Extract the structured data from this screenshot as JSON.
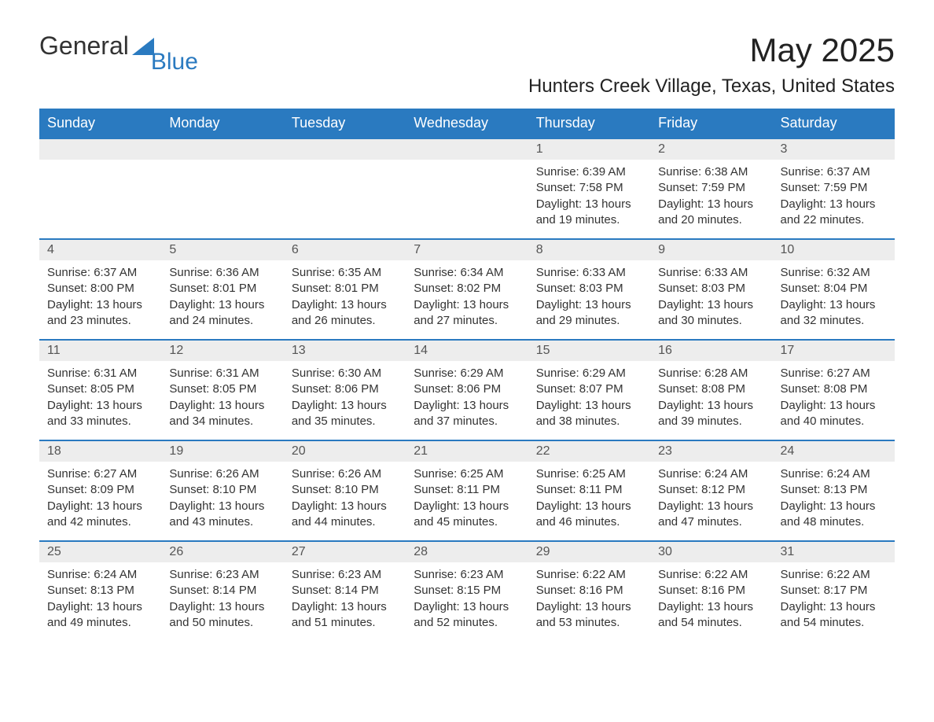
{
  "logo": {
    "text1": "General",
    "text2": "Blue"
  },
  "title": "May 2025",
  "subtitle": "Hunters Creek Village, Texas, United States",
  "colors": {
    "header_bg": "#2a7ac0",
    "header_text": "#ffffff",
    "daynum_bg": "#ededed",
    "border_top": "#2a7ac0",
    "body_text": "#333333",
    "page_bg": "#ffffff"
  },
  "days_of_week": [
    "Sunday",
    "Monday",
    "Tuesday",
    "Wednesday",
    "Thursday",
    "Friday",
    "Saturday"
  ],
  "weeks": [
    [
      {
        "n": "",
        "sunrise": "",
        "sunset": "",
        "daylight": ""
      },
      {
        "n": "",
        "sunrise": "",
        "sunset": "",
        "daylight": ""
      },
      {
        "n": "",
        "sunrise": "",
        "sunset": "",
        "daylight": ""
      },
      {
        "n": "",
        "sunrise": "",
        "sunset": "",
        "daylight": ""
      },
      {
        "n": "1",
        "sunrise": "Sunrise: 6:39 AM",
        "sunset": "Sunset: 7:58 PM",
        "daylight": "Daylight: 13 hours and 19 minutes."
      },
      {
        "n": "2",
        "sunrise": "Sunrise: 6:38 AM",
        "sunset": "Sunset: 7:59 PM",
        "daylight": "Daylight: 13 hours and 20 minutes."
      },
      {
        "n": "3",
        "sunrise": "Sunrise: 6:37 AM",
        "sunset": "Sunset: 7:59 PM",
        "daylight": "Daylight: 13 hours and 22 minutes."
      }
    ],
    [
      {
        "n": "4",
        "sunrise": "Sunrise: 6:37 AM",
        "sunset": "Sunset: 8:00 PM",
        "daylight": "Daylight: 13 hours and 23 minutes."
      },
      {
        "n": "5",
        "sunrise": "Sunrise: 6:36 AM",
        "sunset": "Sunset: 8:01 PM",
        "daylight": "Daylight: 13 hours and 24 minutes."
      },
      {
        "n": "6",
        "sunrise": "Sunrise: 6:35 AM",
        "sunset": "Sunset: 8:01 PM",
        "daylight": "Daylight: 13 hours and 26 minutes."
      },
      {
        "n": "7",
        "sunrise": "Sunrise: 6:34 AM",
        "sunset": "Sunset: 8:02 PM",
        "daylight": "Daylight: 13 hours and 27 minutes."
      },
      {
        "n": "8",
        "sunrise": "Sunrise: 6:33 AM",
        "sunset": "Sunset: 8:03 PM",
        "daylight": "Daylight: 13 hours and 29 minutes."
      },
      {
        "n": "9",
        "sunrise": "Sunrise: 6:33 AM",
        "sunset": "Sunset: 8:03 PM",
        "daylight": "Daylight: 13 hours and 30 minutes."
      },
      {
        "n": "10",
        "sunrise": "Sunrise: 6:32 AM",
        "sunset": "Sunset: 8:04 PM",
        "daylight": "Daylight: 13 hours and 32 minutes."
      }
    ],
    [
      {
        "n": "11",
        "sunrise": "Sunrise: 6:31 AM",
        "sunset": "Sunset: 8:05 PM",
        "daylight": "Daylight: 13 hours and 33 minutes."
      },
      {
        "n": "12",
        "sunrise": "Sunrise: 6:31 AM",
        "sunset": "Sunset: 8:05 PM",
        "daylight": "Daylight: 13 hours and 34 minutes."
      },
      {
        "n": "13",
        "sunrise": "Sunrise: 6:30 AM",
        "sunset": "Sunset: 8:06 PM",
        "daylight": "Daylight: 13 hours and 35 minutes."
      },
      {
        "n": "14",
        "sunrise": "Sunrise: 6:29 AM",
        "sunset": "Sunset: 8:06 PM",
        "daylight": "Daylight: 13 hours and 37 minutes."
      },
      {
        "n": "15",
        "sunrise": "Sunrise: 6:29 AM",
        "sunset": "Sunset: 8:07 PM",
        "daylight": "Daylight: 13 hours and 38 minutes."
      },
      {
        "n": "16",
        "sunrise": "Sunrise: 6:28 AM",
        "sunset": "Sunset: 8:08 PM",
        "daylight": "Daylight: 13 hours and 39 minutes."
      },
      {
        "n": "17",
        "sunrise": "Sunrise: 6:27 AM",
        "sunset": "Sunset: 8:08 PM",
        "daylight": "Daylight: 13 hours and 40 minutes."
      }
    ],
    [
      {
        "n": "18",
        "sunrise": "Sunrise: 6:27 AM",
        "sunset": "Sunset: 8:09 PM",
        "daylight": "Daylight: 13 hours and 42 minutes."
      },
      {
        "n": "19",
        "sunrise": "Sunrise: 6:26 AM",
        "sunset": "Sunset: 8:10 PM",
        "daylight": "Daylight: 13 hours and 43 minutes."
      },
      {
        "n": "20",
        "sunrise": "Sunrise: 6:26 AM",
        "sunset": "Sunset: 8:10 PM",
        "daylight": "Daylight: 13 hours and 44 minutes."
      },
      {
        "n": "21",
        "sunrise": "Sunrise: 6:25 AM",
        "sunset": "Sunset: 8:11 PM",
        "daylight": "Daylight: 13 hours and 45 minutes."
      },
      {
        "n": "22",
        "sunrise": "Sunrise: 6:25 AM",
        "sunset": "Sunset: 8:11 PM",
        "daylight": "Daylight: 13 hours and 46 minutes."
      },
      {
        "n": "23",
        "sunrise": "Sunrise: 6:24 AM",
        "sunset": "Sunset: 8:12 PM",
        "daylight": "Daylight: 13 hours and 47 minutes."
      },
      {
        "n": "24",
        "sunrise": "Sunrise: 6:24 AM",
        "sunset": "Sunset: 8:13 PM",
        "daylight": "Daylight: 13 hours and 48 minutes."
      }
    ],
    [
      {
        "n": "25",
        "sunrise": "Sunrise: 6:24 AM",
        "sunset": "Sunset: 8:13 PM",
        "daylight": "Daylight: 13 hours and 49 minutes."
      },
      {
        "n": "26",
        "sunrise": "Sunrise: 6:23 AM",
        "sunset": "Sunset: 8:14 PM",
        "daylight": "Daylight: 13 hours and 50 minutes."
      },
      {
        "n": "27",
        "sunrise": "Sunrise: 6:23 AM",
        "sunset": "Sunset: 8:14 PM",
        "daylight": "Daylight: 13 hours and 51 minutes."
      },
      {
        "n": "28",
        "sunrise": "Sunrise: 6:23 AM",
        "sunset": "Sunset: 8:15 PM",
        "daylight": "Daylight: 13 hours and 52 minutes."
      },
      {
        "n": "29",
        "sunrise": "Sunrise: 6:22 AM",
        "sunset": "Sunset: 8:16 PM",
        "daylight": "Daylight: 13 hours and 53 minutes."
      },
      {
        "n": "30",
        "sunrise": "Sunrise: 6:22 AM",
        "sunset": "Sunset: 8:16 PM",
        "daylight": "Daylight: 13 hours and 54 minutes."
      },
      {
        "n": "31",
        "sunrise": "Sunrise: 6:22 AM",
        "sunset": "Sunset: 8:17 PM",
        "daylight": "Daylight: 13 hours and 54 minutes."
      }
    ]
  ]
}
